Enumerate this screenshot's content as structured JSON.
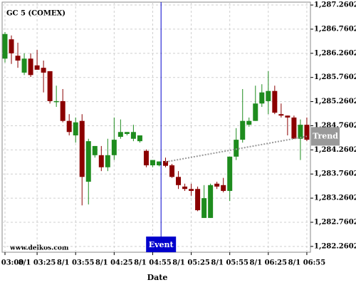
{
  "chart_data": {
    "type": "candlestick",
    "title": "GC 5 (COMEX)",
    "watermark": "www.delkos.com",
    "xlabel": "Date",
    "categories": [
      "8/1 03:00",
      null,
      null,
      null,
      null,
      "8/1 03:25",
      null,
      null,
      null,
      null,
      null,
      "8/1 03:55",
      null,
      null,
      null,
      null,
      null,
      "8/1 04:25",
      null,
      null,
      null,
      null,
      null,
      "8/1 04:55",
      null,
      null,
      null,
      null,
      null,
      "8/1 05:25",
      null,
      null,
      null,
      null,
      null,
      "8/1 05:55",
      null,
      null,
      null,
      null,
      null,
      "8/1 06:25",
      null,
      null,
      null,
      null,
      null,
      "8/1 06:55"
    ],
    "open": [
      1286.15,
      1286.55,
      1286.21,
      1285.86,
      1286.15,
      1286.01,
      1285.96,
      1285.89,
      1285.25,
      1285.27,
      1284.86,
      1284.56,
      1284.86,
      1283.6,
      1284.15,
      1284.15,
      1283.9,
      1284.15,
      1284.53,
      1284.59,
      1284.49,
      1284.44,
      1284.24,
      1283.94,
      1283.94,
      1284.03,
      1283.94,
      1283.7,
      1283.5,
      1283.45,
      1283.45,
      1282.85,
      1282.85,
      1283.56,
      1283.53,
      1283.41,
      1284.12,
      1284.47,
      1284.78,
      1284.86,
      1285.22,
      1285.27,
      1285.48,
      1285.0,
      1284.97,
      1284.93,
      1284.49,
      1284.78
    ],
    "high": [
      1286.7,
      1286.63,
      1286.48,
      1286.26,
      1286.26,
      1286.33,
      1286.11,
      1285.89,
      1285.59,
      1285.52,
      1285.0,
      1284.93,
      1285.0,
      1284.49,
      1284.34,
      1284.34,
      1284.49,
      1284.93,
      1284.89,
      1284.63,
      1284.78,
      1284.56,
      1284.27,
      1284.05,
      1284.02,
      1284.1,
      1283.97,
      1283.82,
      1283.56,
      1283.56,
      1283.5,
      1283.53,
      1283.56,
      1283.6,
      1283.68,
      1284.12,
      1284.71,
      1285.52,
      1284.93,
      1285.59,
      1285.62,
      1285.89,
      1285.59,
      1285.22,
      1284.97,
      1284.97,
      1284.89,
      1284.93
    ],
    "low": [
      1286.07,
      1286.04,
      1285.96,
      1285.81,
      1285.77,
      1285.92,
      1285.45,
      1285.22,
      1285.15,
      1284.83,
      1284.56,
      1284.41,
      1283.11,
      1283.13,
      1284.1,
      1283.82,
      1283.82,
      1284.05,
      1284.49,
      1284.56,
      1284.44,
      1284.41,
      1283.9,
      1283.9,
      1283.92,
      1283.9,
      1283.68,
      1283.45,
      1283.41,
      1283.31,
      1282.99,
      1282.85,
      1282.85,
      1283.45,
      1283.38,
      1283.2,
      1284.05,
      1284.41,
      1284.74,
      1284.86,
      1285.15,
      1285.0,
      1285.0,
      1284.93,
      1284.56,
      1284.49,
      1284.05,
      1284.44
    ],
    "close": [
      1286.66,
      1286.26,
      1286.11,
      1286.15,
      1285.81,
      1285.92,
      1285.86,
      1285.27,
      1285.27,
      1284.86,
      1284.63,
      1284.83,
      1283.7,
      1284.44,
      1284.34,
      1283.9,
      1284.15,
      1284.47,
      1284.63,
      1284.63,
      1284.63,
      1284.56,
      1283.94,
      1284.05,
      1284.02,
      1283.93,
      1283.7,
      1283.53,
      1283.45,
      1283.41,
      1283.01,
      1283.26,
      1283.53,
      1283.5,
      1283.41,
      1284.12,
      1284.47,
      1284.86,
      1284.86,
      1285.22,
      1285.45,
      1285.48,
      1285.03,
      1284.97,
      1284.93,
      1284.49,
      1284.78,
      1284.47
    ],
    "up_color": "#1e8c1e",
    "down_color": "#8b0000",
    "ylim": [
      1282.14,
      1287.32
    ],
    "yticks": [
      {
        "value": 1282.2602,
        "label": "1,282.2602"
      },
      {
        "value": 1282.7602,
        "label": "1,282.7602"
      },
      {
        "value": 1283.2602,
        "label": "1,283.2602"
      },
      {
        "value": 1283.7602,
        "label": "1,283.7602"
      },
      {
        "value": 1284.2602,
        "label": "1,284.2602"
      },
      {
        "value": 1284.7602,
        "label": "1,284.7602"
      },
      {
        "value": 1285.2602,
        "label": "1,285.2602"
      },
      {
        "value": 1285.7602,
        "label": "1,285.7602"
      },
      {
        "value": 1286.2602,
        "label": "1,286.2602"
      },
      {
        "value": 1286.7602,
        "label": "1,286.7602"
      },
      {
        "value": 1287.2602,
        "label": "1,287.2602"
      }
    ],
    "grid": true,
    "trend": {
      "name": "Trend",
      "color": "#999999",
      "x": [
        25,
        47
      ],
      "values": [
        1284.01,
        1284.54
      ]
    },
    "event": {
      "label": "Event",
      "color": "#0000cc",
      "x": 24.3
    }
  }
}
